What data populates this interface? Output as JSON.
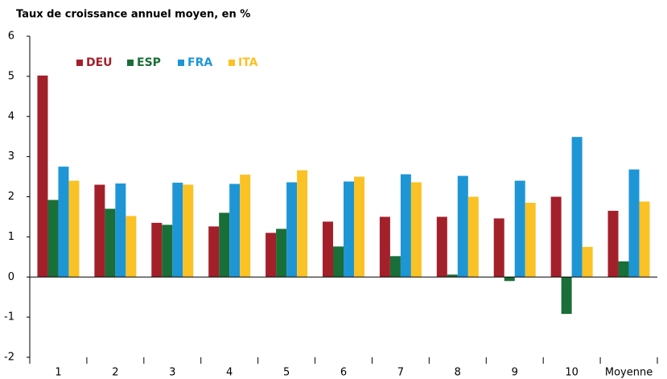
{
  "chart_data": {
    "type": "bar",
    "title": "Taux de croissance annuel moyen, en %",
    "categories": [
      "1",
      "2",
      "3",
      "4",
      "5",
      "6",
      "7",
      "8",
      "9",
      "10",
      "Moyenne"
    ],
    "series": [
      {
        "name": "DEU",
        "color": "#a3202a",
        "values": [
          5.02,
          2.3,
          1.35,
          1.26,
          1.1,
          1.38,
          1.5,
          1.5,
          1.46,
          2.0,
          1.65
        ]
      },
      {
        "name": "ESP",
        "color": "#1a6e37",
        "values": [
          1.92,
          1.7,
          1.3,
          1.6,
          1.2,
          0.76,
          0.52,
          0.06,
          -0.1,
          -0.92,
          0.39
        ]
      },
      {
        "name": "FRA",
        "color": "#1e96d6",
        "values": [
          2.75,
          2.33,
          2.35,
          2.32,
          2.36,
          2.38,
          2.56,
          2.52,
          2.4,
          3.49,
          2.68
        ]
      },
      {
        "name": "ITA",
        "color": "#fbc225",
        "values": [
          2.4,
          1.52,
          2.3,
          2.55,
          2.66,
          2.5,
          2.36,
          2.0,
          1.85,
          0.75,
          1.88
        ]
      }
    ],
    "ylim": [
      -2,
      6
    ],
    "yticks": [
      -2,
      -1,
      0,
      1,
      2,
      3,
      4,
      5,
      6
    ],
    "legend": "top-left"
  }
}
